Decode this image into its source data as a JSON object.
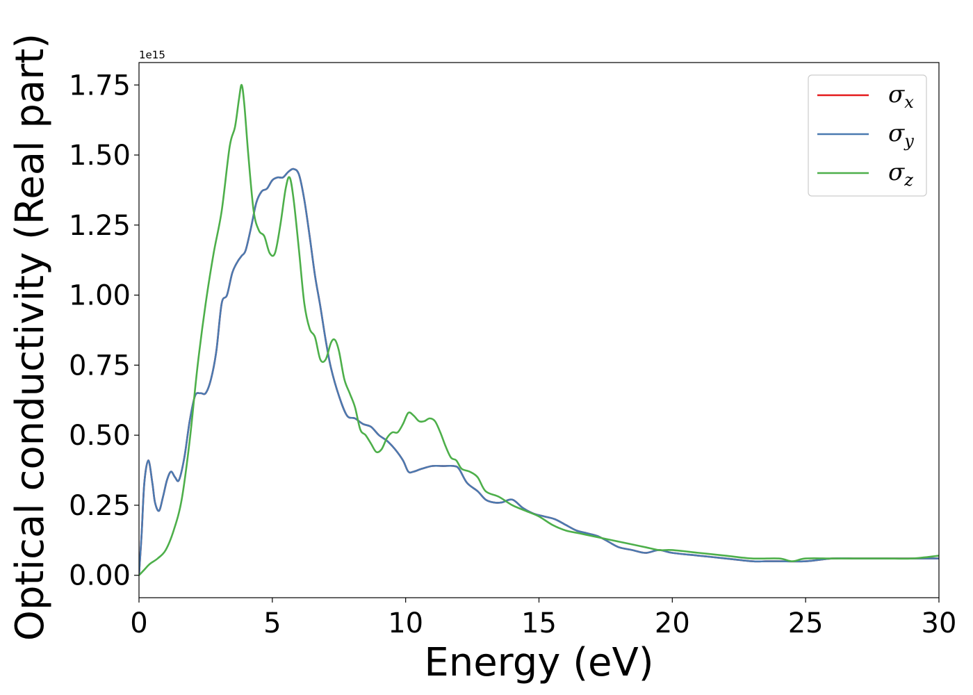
{
  "chart_data": {
    "type": "line",
    "title": "",
    "xlabel": "Energy (eV)",
    "ylabel": "Optical conductivity (Real part)",
    "y_offset_label": "1e15",
    "xlim": [
      0,
      30
    ],
    "ylim": [
      -0.08,
      1.83
    ],
    "y_scale_factor": 1000000000000000.0,
    "xticks": [
      0,
      5,
      10,
      15,
      20,
      25,
      30
    ],
    "xtick_labels": [
      "0",
      "5",
      "10",
      "15",
      "20",
      "25",
      "30"
    ],
    "yticks": [
      0.0,
      0.25,
      0.5,
      0.75,
      1.0,
      1.25,
      1.5,
      1.75
    ],
    "ytick_labels": [
      "0.00",
      "0.25",
      "0.50",
      "0.75",
      "1.00",
      "1.25",
      "1.50",
      "1.75"
    ],
    "grid": false,
    "legend_position": "top-right",
    "series": [
      {
        "name": "σx",
        "legend_symbol": "σ",
        "legend_sub": "x",
        "color": "#e41a1c",
        "x": [
          0,
          0.1,
          0.2,
          0.35,
          0.5,
          0.6,
          0.75,
          0.9,
          1.05,
          1.2,
          1.35,
          1.5,
          1.7,
          1.9,
          2.1,
          2.3,
          2.5,
          2.7,
          2.9,
          3.1,
          3.3,
          3.5,
          3.7,
          3.85,
          4.0,
          4.2,
          4.4,
          4.6,
          4.8,
          5.0,
          5.2,
          5.4,
          5.6,
          5.8,
          6.0,
          6.2,
          6.4,
          6.6,
          6.8,
          7.0,
          7.2,
          7.5,
          7.8,
          8.1,
          8.4,
          8.7,
          9.0,
          9.3,
          9.6,
          9.9,
          10.1,
          10.3,
          10.6,
          11.0,
          11.4,
          11.8,
          12.0,
          12.3,
          12.7,
          13.0,
          13.3,
          13.6,
          14.0,
          14.4,
          14.8,
          15.2,
          15.6,
          16.0,
          16.4,
          16.8,
          17.2,
          17.6,
          18.0,
          18.5,
          19.0,
          19.5,
          20.0,
          21.0,
          22.0,
          23.0,
          23.5,
          24.0,
          25.0,
          26.0,
          27.0,
          28.0,
          28.5,
          29.0,
          30.0
        ],
        "y": [
          0.0,
          0.15,
          0.33,
          0.41,
          0.33,
          0.26,
          0.23,
          0.28,
          0.34,
          0.37,
          0.35,
          0.34,
          0.42,
          0.55,
          0.64,
          0.65,
          0.65,
          0.7,
          0.8,
          0.97,
          1.0,
          1.08,
          1.12,
          1.14,
          1.16,
          1.24,
          1.33,
          1.37,
          1.38,
          1.41,
          1.42,
          1.42,
          1.44,
          1.45,
          1.43,
          1.34,
          1.21,
          1.07,
          0.96,
          0.84,
          0.74,
          0.64,
          0.57,
          0.56,
          0.54,
          0.53,
          0.5,
          0.48,
          0.45,
          0.41,
          0.37,
          0.37,
          0.38,
          0.39,
          0.39,
          0.39,
          0.38,
          0.33,
          0.3,
          0.27,
          0.26,
          0.26,
          0.27,
          0.24,
          0.22,
          0.21,
          0.2,
          0.18,
          0.16,
          0.15,
          0.14,
          0.12,
          0.1,
          0.09,
          0.08,
          0.09,
          0.08,
          0.07,
          0.06,
          0.05,
          0.05,
          0.05,
          0.05,
          0.06,
          0.06,
          0.06,
          0.06,
          0.06,
          0.06
        ]
      },
      {
        "name": "σy",
        "legend_symbol": "σ",
        "legend_sub": "y",
        "color": "#4a7ab0",
        "x": [
          0,
          0.1,
          0.2,
          0.35,
          0.5,
          0.6,
          0.75,
          0.9,
          1.05,
          1.2,
          1.35,
          1.5,
          1.7,
          1.9,
          2.1,
          2.3,
          2.5,
          2.7,
          2.9,
          3.1,
          3.3,
          3.5,
          3.7,
          3.85,
          4.0,
          4.2,
          4.4,
          4.6,
          4.8,
          5.0,
          5.2,
          5.4,
          5.6,
          5.8,
          6.0,
          6.2,
          6.4,
          6.6,
          6.8,
          7.0,
          7.2,
          7.5,
          7.8,
          8.1,
          8.4,
          8.7,
          9.0,
          9.3,
          9.6,
          9.9,
          10.1,
          10.3,
          10.6,
          11.0,
          11.4,
          11.8,
          12.0,
          12.3,
          12.7,
          13.0,
          13.3,
          13.6,
          14.0,
          14.4,
          14.8,
          15.2,
          15.6,
          16.0,
          16.4,
          16.8,
          17.2,
          17.6,
          18.0,
          18.5,
          19.0,
          19.5,
          20.0,
          21.0,
          22.0,
          23.0,
          23.5,
          24.0,
          25.0,
          26.0,
          27.0,
          28.0,
          28.5,
          29.0,
          30.0
        ],
        "y": [
          0.0,
          0.15,
          0.33,
          0.41,
          0.33,
          0.26,
          0.23,
          0.28,
          0.34,
          0.37,
          0.35,
          0.34,
          0.42,
          0.55,
          0.64,
          0.65,
          0.65,
          0.7,
          0.8,
          0.97,
          1.0,
          1.08,
          1.12,
          1.14,
          1.16,
          1.24,
          1.33,
          1.37,
          1.38,
          1.41,
          1.42,
          1.42,
          1.44,
          1.45,
          1.43,
          1.34,
          1.21,
          1.07,
          0.96,
          0.84,
          0.74,
          0.64,
          0.57,
          0.56,
          0.54,
          0.53,
          0.5,
          0.48,
          0.45,
          0.41,
          0.37,
          0.37,
          0.38,
          0.39,
          0.39,
          0.39,
          0.38,
          0.33,
          0.3,
          0.27,
          0.26,
          0.26,
          0.27,
          0.24,
          0.22,
          0.21,
          0.2,
          0.18,
          0.16,
          0.15,
          0.14,
          0.12,
          0.1,
          0.09,
          0.08,
          0.09,
          0.08,
          0.07,
          0.06,
          0.05,
          0.05,
          0.05,
          0.05,
          0.06,
          0.06,
          0.06,
          0.06,
          0.06,
          0.06
        ]
      },
      {
        "name": "σz",
        "legend_symbol": "σ",
        "legend_sub": "z",
        "color": "#4daf4a",
        "x": [
          0,
          0.2,
          0.4,
          0.7,
          1.0,
          1.3,
          1.6,
          1.9,
          2.2,
          2.5,
          2.8,
          3.1,
          3.4,
          3.6,
          3.75,
          3.85,
          3.95,
          4.1,
          4.3,
          4.5,
          4.7,
          4.9,
          5.1,
          5.3,
          5.5,
          5.65,
          5.8,
          6.0,
          6.2,
          6.4,
          6.6,
          6.8,
          7.0,
          7.2,
          7.35,
          7.5,
          7.7,
          7.9,
          8.1,
          8.3,
          8.5,
          8.7,
          8.9,
          9.1,
          9.3,
          9.5,
          9.7,
          9.9,
          10.1,
          10.3,
          10.5,
          10.7,
          10.9,
          11.1,
          11.3,
          11.5,
          11.7,
          11.9,
          12.1,
          12.4,
          12.7,
          13.0,
          13.5,
          14.0,
          14.5,
          15.0,
          15.5,
          16.0,
          16.5,
          17.0,
          17.5,
          18.0,
          18.5,
          19.0,
          19.5,
          20.0,
          21.0,
          22.0,
          23.0,
          24.0,
          24.5,
          25.0,
          26.0,
          27.0,
          28.0,
          29.0,
          30.0
        ],
        "y": [
          0.0,
          0.02,
          0.04,
          0.06,
          0.09,
          0.16,
          0.27,
          0.48,
          0.75,
          0.97,
          1.15,
          1.3,
          1.53,
          1.6,
          1.7,
          1.75,
          1.68,
          1.5,
          1.3,
          1.23,
          1.21,
          1.15,
          1.15,
          1.25,
          1.38,
          1.42,
          1.34,
          1.16,
          0.97,
          0.88,
          0.85,
          0.77,
          0.77,
          0.83,
          0.84,
          0.8,
          0.7,
          0.65,
          0.6,
          0.52,
          0.5,
          0.47,
          0.44,
          0.45,
          0.49,
          0.51,
          0.51,
          0.54,
          0.58,
          0.57,
          0.55,
          0.55,
          0.56,
          0.55,
          0.51,
          0.46,
          0.42,
          0.41,
          0.38,
          0.37,
          0.35,
          0.3,
          0.28,
          0.25,
          0.23,
          0.21,
          0.18,
          0.16,
          0.15,
          0.14,
          0.13,
          0.12,
          0.11,
          0.1,
          0.09,
          0.09,
          0.08,
          0.07,
          0.06,
          0.06,
          0.05,
          0.06,
          0.06,
          0.06,
          0.06,
          0.06,
          0.07
        ]
      }
    ]
  }
}
